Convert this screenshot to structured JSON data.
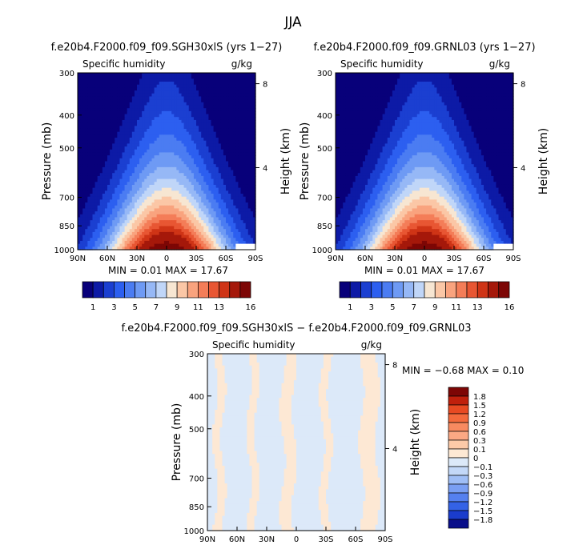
{
  "figure": {
    "title": "JJA"
  },
  "chart_data": [
    {
      "type": "heatmap",
      "title": "f.e20b4.F2000.f09_f09.SGH30xlS (yrs 1−27)",
      "subtitle_left": "Specific humidity",
      "subtitle_right": "g/kg",
      "ylabel": "Pressure (mb)",
      "ylabel_right": "Height (km)",
      "x_ticks": [
        "90N",
        "60N",
        "30N",
        "0",
        "30S",
        "60S",
        "90S"
      ],
      "y_ticks": [
        "300",
        "400",
        "500",
        "700",
        "850",
        "1000"
      ],
      "y_right_ticks": [
        "8",
        "4"
      ],
      "stats": "MIN =   0.01   MAX =   17.67",
      "field": {
        "peak_latitude": -0.1,
        "baseline": 17.6,
        "lapse": 7.8,
        "min": 0.01,
        "max": 17.67
      },
      "colorbar": {
        "orientation": "horizontal",
        "labels": [
          "1",
          "3",
          "5",
          "7",
          "9",
          "11",
          "13",
          "16"
        ],
        "levels": [
          1,
          2,
          3,
          4,
          5,
          6,
          7,
          8,
          9,
          10,
          11,
          12,
          13,
          14,
          16
        ],
        "colors": [
          "#08007a",
          "#0d1aa6",
          "#1b3fd1",
          "#2c5ff0",
          "#4b7cf2",
          "#6e9af4",
          "#96b8f6",
          "#c0d6f8",
          "#f7e6d2",
          "#fbc7a6",
          "#f9a37e",
          "#f47d58",
          "#e85633",
          "#cf3416",
          "#a5180a",
          "#7d0605"
        ]
      }
    },
    {
      "type": "heatmap",
      "title": "f.e20b4.F2000.f09_f09.GRNL03 (yrs 1−27)",
      "subtitle_left": "Specific humidity",
      "subtitle_right": "g/kg",
      "ylabel": "Pressure (mb)",
      "ylabel_right": "Height (km)",
      "x_ticks": [
        "90N",
        "60N",
        "30N",
        "0",
        "30S",
        "60S",
        "90S"
      ],
      "y_ticks": [
        "300",
        "400",
        "500",
        "700",
        "850",
        "1000"
      ],
      "y_right_ticks": [
        "8",
        "4"
      ],
      "stats": "MIN =   0.01   MAX =   17.67",
      "field": {
        "peak_latitude": -0.1,
        "baseline": 17.6,
        "lapse": 7.8,
        "min": 0.01,
        "max": 17.67
      },
      "colorbar": {
        "orientation": "horizontal",
        "labels": [
          "1",
          "3",
          "5",
          "7",
          "9",
          "11",
          "13",
          "16"
        ],
        "levels": [
          1,
          2,
          3,
          4,
          5,
          6,
          7,
          8,
          9,
          10,
          11,
          12,
          13,
          14,
          16
        ],
        "colors": [
          "#08007a",
          "#0d1aa6",
          "#1b3fd1",
          "#2c5ff0",
          "#4b7cf2",
          "#6e9af4",
          "#96b8f6",
          "#c0d6f8",
          "#f7e6d2",
          "#fbc7a6",
          "#f9a37e",
          "#f47d58",
          "#e85633",
          "#cf3416",
          "#a5180a",
          "#7d0605"
        ]
      }
    },
    {
      "type": "heatmap",
      "title": "f.e20b4.F2000.f09_f09.SGH30xlS − f.e20b4.F2000.f09_f09.GRNL03",
      "subtitle_left": "Specific humidity",
      "subtitle_right": "g/kg",
      "ylabel": "Pressure (mb)",
      "ylabel_right": "Height (km)",
      "x_ticks": [
        "90N",
        "60N",
        "30N",
        "0",
        "30S",
        "60S",
        "90S"
      ],
      "y_ticks": [
        "300",
        "400",
        "500",
        "700",
        "850",
        "1000"
      ],
      "y_right_ticks": [
        "8",
        "4"
      ],
      "stats": "MIN =   −0.68   MAX =   0.10",
      "field": {
        "min": -0.68,
        "max": 0.1,
        "positive_bands": [
          {
            "lat_min": 74,
            "lat_max": 82
          },
          {
            "lat_min": 40,
            "lat_max": 48
          },
          {
            "lat_min": 2,
            "lat_max": 14
          },
          {
            "lat_min": -26,
            "lat_max": -34
          },
          {
            "lat_min": -66,
            "lat_max": -82
          }
        ]
      },
      "colorbar": {
        "orientation": "vertical",
        "labels": [
          "1.8",
          "1.5",
          "1.2",
          "0.9",
          "0.6",
          "0.3",
          "0.1",
          "0",
          "−0.1",
          "−0.3",
          "−0.6",
          "−0.9",
          "−1.2",
          "−1.5",
          "−1.8"
        ],
        "colors": [
          "#7d0605",
          "#c0200c",
          "#e84a22",
          "#f46a3c",
          "#f88a60",
          "#fba884",
          "#fdcaa8",
          "#fde8d4",
          "#dce9f9",
          "#c3d8f8",
          "#9fbef6",
          "#7a9ff3",
          "#5580ef",
          "#3462e6",
          "#1a3ccc",
          "#0a0f8a"
        ]
      }
    }
  ]
}
